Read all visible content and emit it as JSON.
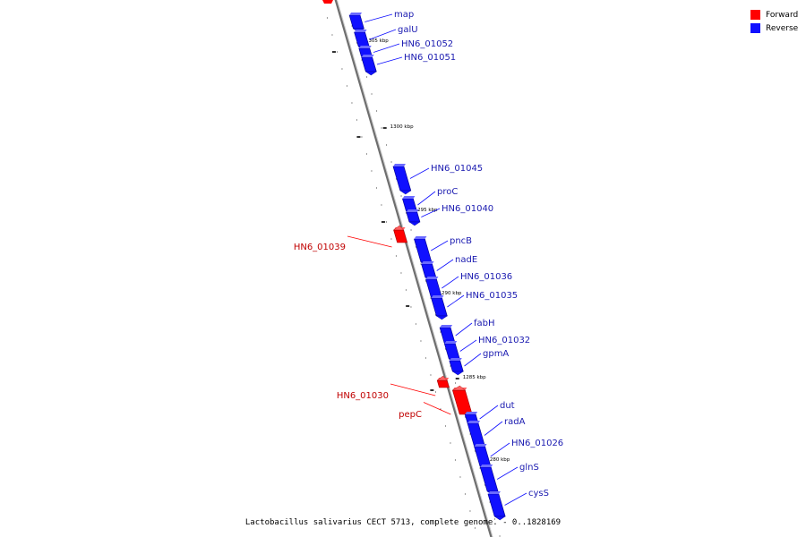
{
  "legend": {
    "forward_label": "Forward",
    "reverse_label": "Reverse",
    "forward_color": "#ff0000",
    "reverse_color": "#1010ff"
  },
  "caption": "Lactobacillus salivarius CECT 5713, complete genome. - 0..1828169",
  "ticks": [
    {
      "label": "1305 kbp"
    },
    {
      "label": "1300 kbp"
    },
    {
      "label": "1295 kbp"
    },
    {
      "label": "1290 kbp"
    },
    {
      "label": "1285 kbp"
    },
    {
      "label": "1280 kbp"
    }
  ],
  "genes": [
    {
      "name": "map",
      "strand": "reverse"
    },
    {
      "name": "galU",
      "strand": "reverse"
    },
    {
      "name": "HN6_01052",
      "strand": "reverse"
    },
    {
      "name": "HN6_01051",
      "strand": "reverse"
    },
    {
      "name": "HN6_01045",
      "strand": "reverse"
    },
    {
      "name": "proC",
      "strand": "reverse"
    },
    {
      "name": "HN6_01040",
      "strand": "reverse"
    },
    {
      "name": "HN6_01039",
      "strand": "forward"
    },
    {
      "name": "pncB",
      "strand": "reverse"
    },
    {
      "name": "nadE",
      "strand": "reverse"
    },
    {
      "name": "HN6_01036",
      "strand": "reverse"
    },
    {
      "name": "HN6_01035",
      "strand": "reverse"
    },
    {
      "name": "fabH",
      "strand": "reverse"
    },
    {
      "name": "HN6_01032",
      "strand": "reverse"
    },
    {
      "name": "gpmA",
      "strand": "reverse"
    },
    {
      "name": "HN6_01030",
      "strand": "forward"
    },
    {
      "name": "pepC",
      "strand": "forward"
    },
    {
      "name": "dut",
      "strand": "reverse"
    },
    {
      "name": "radA",
      "strand": "reverse"
    },
    {
      "name": "HN6_01026",
      "strand": "reverse"
    },
    {
      "name": "glnS",
      "strand": "reverse"
    },
    {
      "name": "cysS",
      "strand": "reverse"
    }
  ]
}
